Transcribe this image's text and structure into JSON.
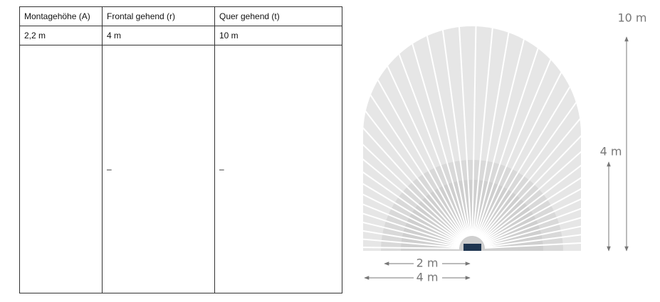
{
  "table": {
    "headers": [
      "Montagehöhe (A)",
      "Frontal gehend (r)",
      "Quer gehend (t)"
    ],
    "rows": [
      [
        "2,2 m",
        "4 m",
        "10 m"
      ],
      [
        null,
        "–",
        "–"
      ]
    ]
  },
  "diagram": {
    "labels": {
      "height_total": "10 m",
      "height_front": "4 m",
      "width_front": "2 m",
      "width_total": "4 m"
    }
  }
}
